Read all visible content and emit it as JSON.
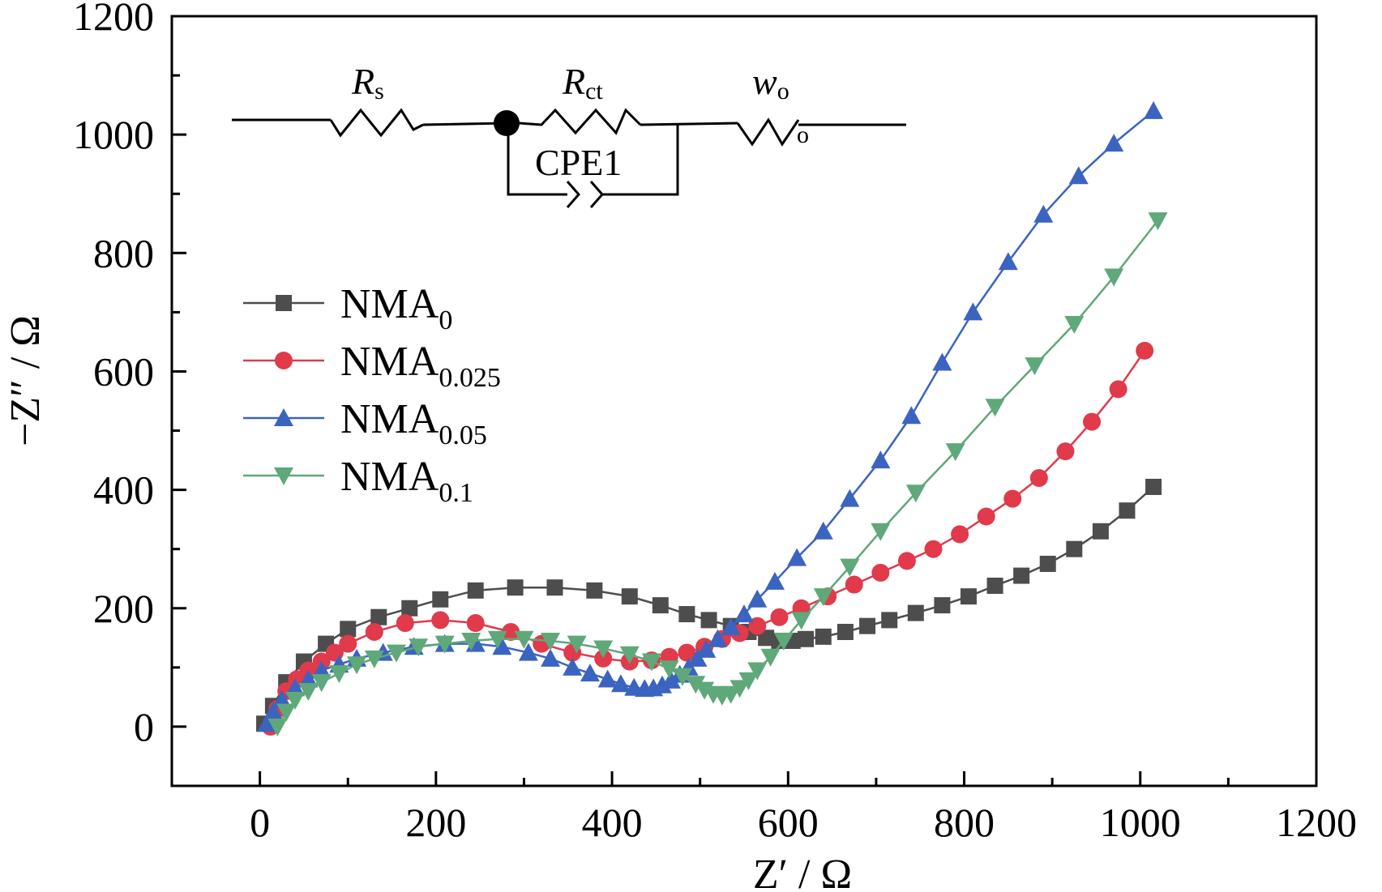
{
  "chart_data": {
    "type": "line",
    "xlabel": "Z′ / Ω",
    "ylabel": "−Z″ / Ω",
    "xlim": [
      -100,
      1200
    ],
    "ylim": [
      -100,
      1200
    ],
    "xticks": [
      0,
      200,
      400,
      600,
      800,
      1000,
      1200
    ],
    "yticks": [
      0,
      200,
      400,
      600,
      800,
      1000,
      1200
    ],
    "legend_position": "middle-left",
    "series": [
      {
        "name": "NMA",
        "subscript": "0",
        "color": "#4d4d4d",
        "marker": "square",
        "x": [
          5,
          15,
          30,
          50,
          75,
          100,
          135,
          170,
          205,
          245,
          290,
          335,
          380,
          420,
          455,
          485,
          510,
          535,
          555,
          575,
          590,
          605,
          620,
          640,
          665,
          690,
          715,
          745,
          775,
          805,
          835,
          865,
          895,
          925,
          955,
          985,
          1015
        ],
        "y": [
          5,
          35,
          75,
          110,
          140,
          165,
          185,
          200,
          215,
          230,
          235,
          235,
          230,
          220,
          205,
          190,
          180,
          170,
          160,
          150,
          145,
          145,
          148,
          152,
          160,
          170,
          180,
          192,
          205,
          220,
          238,
          255,
          275,
          300,
          330,
          365,
          405
        ]
      },
      {
        "name": "NMA",
        "subscript": "0.025",
        "color": "#e03a4b",
        "marker": "circle",
        "x": [
          12,
          20,
          30,
          42,
          55,
          70,
          85,
          100,
          130,
          165,
          205,
          245,
          285,
          320,
          355,
          390,
          420,
          445,
          465,
          485,
          505,
          525,
          545,
          565,
          590,
          615,
          645,
          675,
          705,
          735,
          765,
          795,
          825,
          855,
          885,
          915,
          945,
          975,
          1005
        ],
        "y": [
          0,
          30,
          60,
          80,
          95,
          110,
          125,
          140,
          160,
          175,
          180,
          175,
          160,
          140,
          125,
          115,
          110,
          112,
          118,
          125,
          135,
          148,
          158,
          170,
          185,
          200,
          220,
          240,
          260,
          280,
          300,
          325,
          355,
          385,
          420,
          465,
          515,
          570,
          635
        ]
      },
      {
        "name": "NMA",
        "subscript": "0.05",
        "color": "#3b64c0",
        "marker": "triangle-up",
        "x": [
          8,
          15,
          25,
          40,
          55,
          70,
          90,
          110,
          140,
          175,
          210,
          245,
          275,
          305,
          330,
          355,
          375,
          395,
          410,
          425,
          437,
          447,
          457,
          467,
          477,
          487,
          497,
          507,
          520,
          535,
          550,
          565,
          585,
          610,
          640,
          670,
          705,
          740,
          775,
          810,
          850,
          890,
          930,
          970,
          1015
        ],
        "y": [
          5,
          25,
          45,
          65,
          80,
          95,
          105,
          115,
          125,
          135,
          140,
          140,
          135,
          125,
          115,
          100,
          90,
          80,
          72,
          66,
          64,
          65,
          70,
          78,
          88,
          100,
          115,
          130,
          148,
          168,
          190,
          215,
          245,
          285,
          330,
          385,
          450,
          525,
          615,
          700,
          785,
          865,
          930,
          985,
          1040
        ]
      },
      {
        "name": "NMA",
        "subscript": "0.1",
        "color": "#5fa879",
        "marker": "triangle-down",
        "x": [
          20,
          30,
          40,
          55,
          70,
          90,
          110,
          130,
          155,
          180,
          210,
          240,
          270,
          300,
          330,
          360,
          390,
          420,
          445,
          465,
          480,
          495,
          505,
          515,
          525,
          535,
          545,
          555,
          565,
          580,
          595,
          615,
          640,
          670,
          705,
          745,
          790,
          835,
          880,
          925,
          970,
          1020
        ],
        "y": [
          0,
          25,
          45,
          60,
          75,
          90,
          105,
          115,
          125,
          135,
          140,
          145,
          148,
          148,
          145,
          140,
          132,
          122,
          110,
          98,
          85,
          72,
          62,
          55,
          52,
          55,
          65,
          78,
          95,
          118,
          145,
          180,
          220,
          270,
          330,
          395,
          465,
          540,
          610,
          680,
          760,
          855
        ]
      }
    ],
    "inset_circuit": {
      "labels": {
        "rs_main": "R",
        "rs_sub": "s",
        "rct_main": "R",
        "rct_sub": "ct",
        "wo_main": "w",
        "wo_sub": "o",
        "wo_lower": "o",
        "cpe": "CPE1"
      }
    }
  }
}
